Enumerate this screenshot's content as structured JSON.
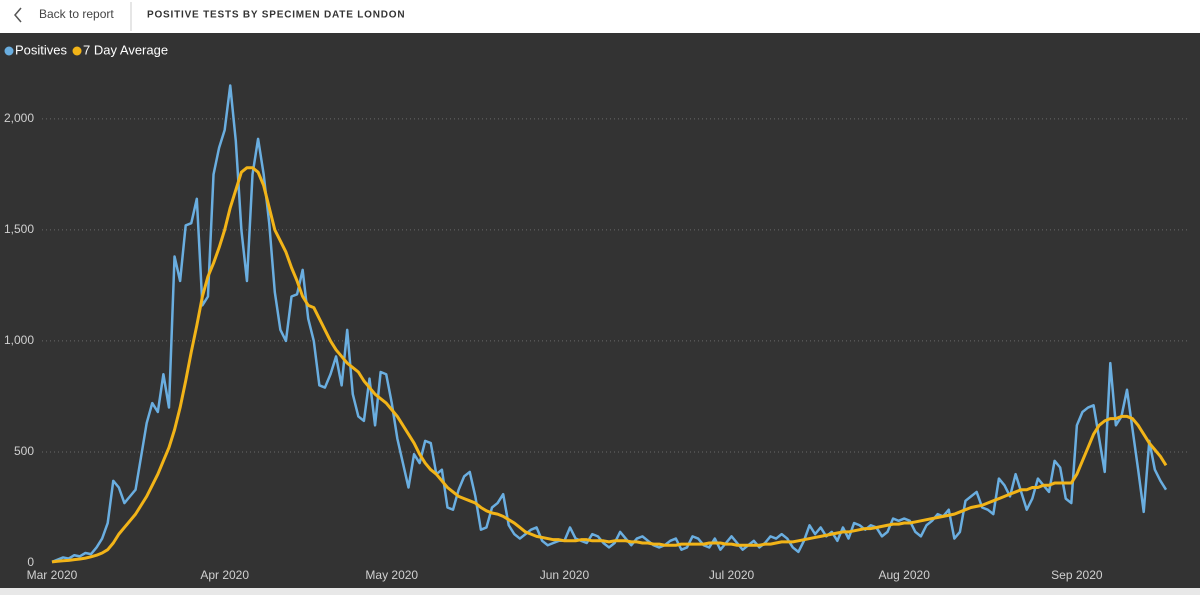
{
  "header": {
    "back_label": "Back to report"
  },
  "chart_data": {
    "type": "line",
    "title": "POSITIVE TESTS BY SPECIMEN DATE LONDON",
    "categories": [
      "Mar 2020",
      null,
      null,
      null,
      null,
      null,
      null,
      null,
      null,
      null,
      null,
      null,
      null,
      null,
      null,
      null,
      null,
      null,
      null,
      null,
      null,
      null,
      null,
      null,
      null,
      null,
      null,
      null,
      null,
      null,
      null,
      "Apr 2020",
      null,
      null,
      null,
      null,
      null,
      null,
      null,
      null,
      null,
      null,
      null,
      null,
      null,
      null,
      null,
      null,
      null,
      null,
      null,
      null,
      null,
      null,
      null,
      null,
      null,
      null,
      null,
      null,
      null,
      "May 2020",
      null,
      null,
      null,
      null,
      null,
      null,
      null,
      null,
      null,
      null,
      null,
      null,
      null,
      null,
      null,
      null,
      null,
      null,
      null,
      null,
      null,
      null,
      null,
      null,
      null,
      null,
      null,
      null,
      null,
      null,
      "Jun 2020",
      null,
      null,
      null,
      null,
      null,
      null,
      null,
      null,
      null,
      null,
      null,
      null,
      null,
      null,
      null,
      null,
      null,
      null,
      null,
      null,
      null,
      null,
      null,
      null,
      null,
      null,
      null,
      null,
      null,
      "Jul 2020",
      null,
      null,
      null,
      null,
      null,
      null,
      null,
      null,
      null,
      null,
      null,
      null,
      null,
      null,
      null,
      null,
      null,
      null,
      null,
      null,
      null,
      null,
      null,
      null,
      null,
      null,
      null,
      null,
      null,
      null,
      "Aug 2020",
      null,
      null,
      null,
      null,
      null,
      null,
      null,
      null,
      null,
      null,
      null,
      null,
      null,
      null,
      null,
      null,
      null,
      null,
      null,
      null,
      null,
      null,
      null,
      null,
      null,
      null,
      null,
      null,
      null,
      null,
      "Sep 2020",
      null,
      null,
      null,
      null,
      null,
      null,
      null,
      null,
      null,
      null,
      null,
      null,
      null,
      null,
      null,
      null
    ],
    "series": [
      {
        "name": "Positives",
        "color": "#6aaee0",
        "values": [
          5,
          15,
          25,
          20,
          35,
          30,
          45,
          40,
          70,
          110,
          180,
          370,
          340,
          270,
          300,
          330,
          480,
          630,
          720,
          680,
          850,
          700,
          1380,
          1270,
          1520,
          1530,
          1640,
          1160,
          1200,
          1750,
          1870,
          1950,
          2150,
          1900,
          1500,
          1270,
          1750,
          1910,
          1750,
          1530,
          1220,
          1050,
          1000,
          1200,
          1210,
          1320,
          1100,
          1000,
          800,
          790,
          850,
          930,
          800,
          1050,
          760,
          660,
          640,
          830,
          620,
          860,
          850,
          720,
          560,
          450,
          340,
          490,
          450,
          550,
          540,
          400,
          420,
          250,
          240,
          330,
          390,
          410,
          300,
          150,
          160,
          250,
          270,
          310,
          170,
          130,
          110,
          130,
          150,
          160,
          100,
          80,
          90,
          100,
          100,
          160,
          110,
          100,
          90,
          130,
          120,
          90,
          70,
          90,
          140,
          110,
          80,
          110,
          120,
          100,
          80,
          70,
          80,
          100,
          110,
          60,
          70,
          120,
          110,
          80,
          70,
          110,
          60,
          90,
          120,
          90,
          60,
          80,
          100,
          70,
          90,
          120,
          110,
          130,
          110,
          70,
          50,
          100,
          170,
          130,
          160,
          120,
          140,
          100,
          160,
          110,
          180,
          170,
          150,
          170,
          160,
          120,
          140,
          200,
          190,
          200,
          190,
          140,
          120,
          170,
          190,
          220,
          210,
          240,
          110,
          140,
          280,
          300,
          320,
          250,
          240,
          220,
          380,
          350,
          300,
          400,
          320,
          240,
          290,
          380,
          350,
          320,
          460,
          430,
          290,
          270,
          620,
          680,
          700,
          710,
          560,
          410,
          900,
          620,
          660,
          780,
          600,
          420,
          230,
          550,
          420,
          370,
          330
        ]
      },
      {
        "name": "7 Day Average",
        "color": "#f2b418",
        "values": [
          5,
          8,
          10,
          12,
          15,
          18,
          22,
          28,
          35,
          45,
          60,
          90,
          130,
          160,
          190,
          220,
          260,
          300,
          350,
          400,
          460,
          520,
          600,
          700,
          820,
          950,
          1070,
          1200,
          1290,
          1350,
          1420,
          1500,
          1600,
          1680,
          1760,
          1780,
          1780,
          1760,
          1700,
          1600,
          1500,
          1450,
          1400,
          1330,
          1270,
          1200,
          1160,
          1150,
          1100,
          1050,
          1000,
          960,
          930,
          900,
          880,
          860,
          820,
          790,
          760,
          740,
          720,
          690,
          660,
          620,
          580,
          540,
          490,
          450,
          420,
          400,
          370,
          340,
          320,
          300,
          290,
          280,
          270,
          250,
          235,
          225,
          220,
          210,
          195,
          180,
          160,
          140,
          130,
          120,
          115,
          110,
          105,
          105,
          100,
          100,
          100,
          105,
          105,
          100,
          100,
          100,
          95,
          100,
          100,
          100,
          95,
          95,
          90,
          90,
          85,
          85,
          80,
          80,
          80,
          85,
          85,
          85,
          85,
          85,
          90,
          90,
          90,
          85,
          85,
          80,
          80,
          80,
          80,
          80,
          85,
          85,
          90,
          95,
          95,
          95,
          100,
          105,
          110,
          115,
          120,
          125,
          130,
          135,
          140,
          140,
          145,
          150,
          155,
          155,
          160,
          165,
          170,
          175,
          175,
          180,
          180,
          185,
          190,
          195,
          200,
          205,
          210,
          215,
          220,
          230,
          240,
          250,
          255,
          260,
          270,
          280,
          290,
          300,
          310,
          320,
          330,
          330,
          340,
          340,
          350,
          350,
          360,
          360,
          360,
          360,
          400,
          460,
          520,
          580,
          620,
          640,
          650,
          650,
          660,
          660,
          650,
          620,
          580,
          540,
          510,
          480,
          440
        ]
      }
    ],
    "ylim": [
      0,
      2355
    ],
    "yticks": [
      0,
      500,
      {
        "value": 1000,
        "label": "1,000"
      },
      {
        "value": 1500,
        "label": "1,500"
      },
      {
        "value": 2000,
        "label": "2,000"
      }
    ],
    "grid": true,
    "legend": "top-left"
  }
}
